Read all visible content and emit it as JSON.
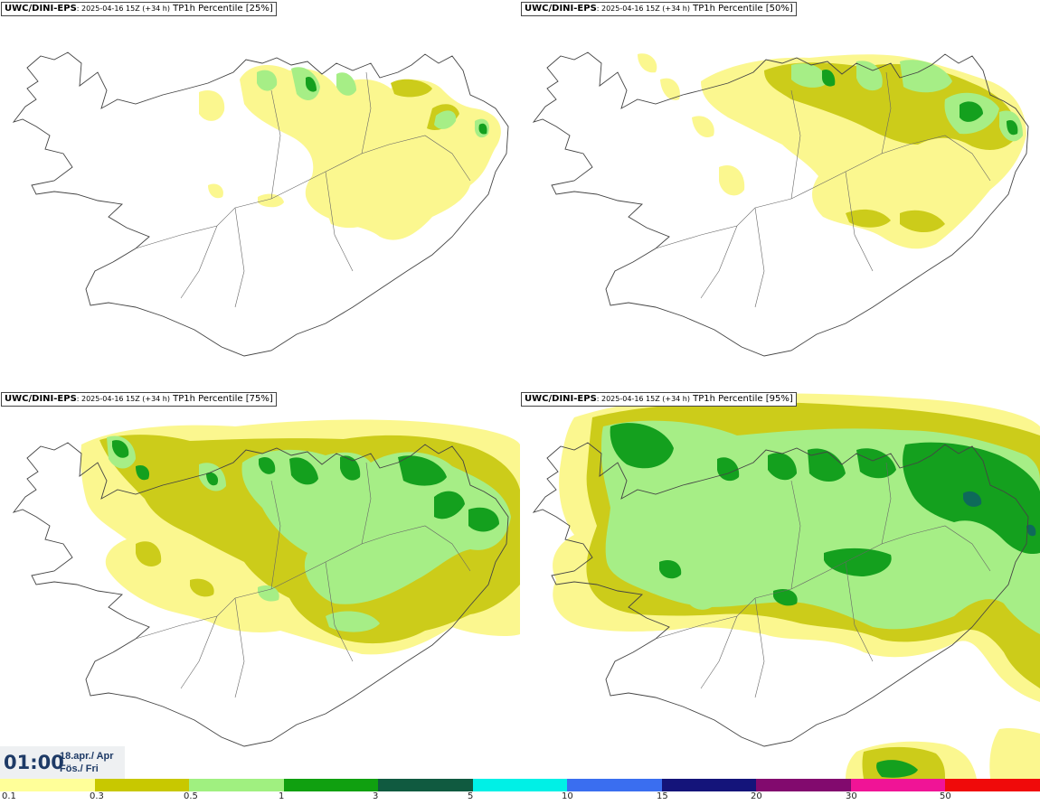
{
  "panels": [
    {
      "model": "UWC/DINI-EPS",
      "run": ": 2025-04-16 15Z (+34 h)",
      "field": " TP1h Percentile [25%]"
    },
    {
      "model": "UWC/DINI-EPS",
      "run": ": 2025-04-16 15Z (+34 h)",
      "field": " TP1h Percentile [50%]"
    },
    {
      "model": "UWC/DINI-EPS",
      "run": ": 2025-04-16 15Z (+34 h)",
      "field": " TP1h Percentile [75%]"
    },
    {
      "model": "UWC/DINI-EPS",
      "run": ": 2025-04-16 15Z (+34 h)",
      "field": " TP1h Percentile [95%]"
    }
  ],
  "valid_time": {
    "time": "01:00",
    "date": "18.apr./ Apr",
    "day": "Fös./ Fri"
  },
  "colorbar": {
    "ticks": [
      "0.1",
      "0.3",
      "0.5",
      "1",
      "3",
      "5",
      "10",
      "15",
      "20",
      "30",
      "50"
    ],
    "colors": [
      "#ffff99",
      "#c8c800",
      "#a0f080",
      "#10a010",
      "#105a40",
      "#00f0e6",
      "#3a6ef0",
      "#14147a",
      "#820a6e",
      "#f01496",
      "#f00a0a"
    ]
  },
  "map_colors": {
    "light": "#fbf78f",
    "mid": "#cccc1a",
    "green": "#a6ee86",
    "dark": "#14a01e",
    "deep": "#0e6a5a"
  }
}
